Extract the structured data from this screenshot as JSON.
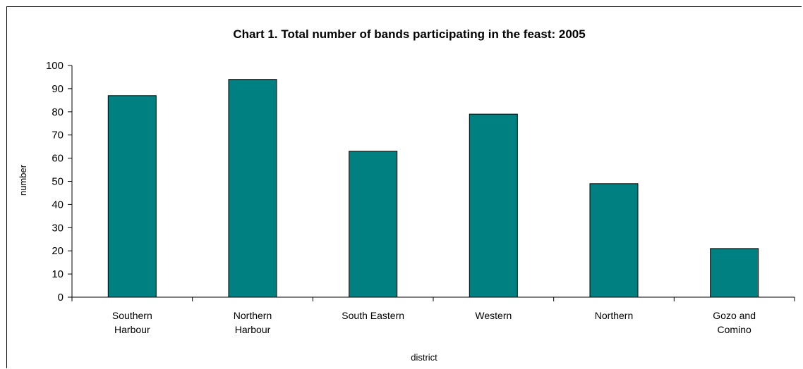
{
  "chart_data": {
    "type": "bar",
    "title": "Chart 1. Total number of bands participating in the feast: 2005",
    "xlabel": "district",
    "ylabel": "number",
    "categories": [
      [
        "Southern",
        "Harbour"
      ],
      [
        "Northern",
        "Harbour"
      ],
      [
        "South Eastern"
      ],
      [
        "Western"
      ],
      [
        "Northern"
      ],
      [
        "Gozo and",
        "Comino"
      ]
    ],
    "values": [
      87,
      94,
      63,
      79,
      49,
      21
    ],
    "ylim": [
      0,
      100
    ],
    "yticks": [
      0,
      10,
      20,
      30,
      40,
      50,
      60,
      70,
      80,
      90,
      100
    ],
    "grid": false,
    "legend": "none",
    "bar_color": "#008080",
    "bar_outline": "#000000"
  }
}
